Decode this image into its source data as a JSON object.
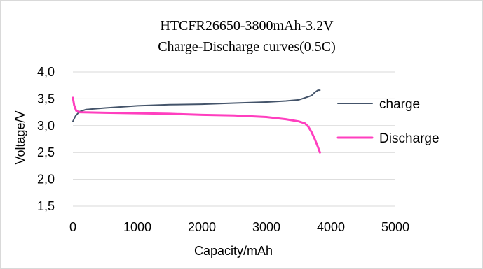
{
  "chart_data": {
    "type": "line",
    "title": "HTCFR26650-3800mAh-3.2V",
    "subtitle": "Charge-Discharge curves(0.5C)",
    "xlabel": "Capacity/mAh",
    "ylabel": "Voltage/V",
    "xlim": [
      0,
      5000
    ],
    "ylim": [
      1.5,
      4.0
    ],
    "x_ticks": [
      "0",
      "1000",
      "2000",
      "3000",
      "4000",
      "5000"
    ],
    "y_ticks": [
      "4,0",
      "3,5",
      "3,0",
      "2,5",
      "2,0",
      "1,5"
    ],
    "grid": "horizontal",
    "legend_position": "right",
    "series": [
      {
        "name": "charge",
        "color": "#44546a",
        "points": [
          [
            0,
            3.08
          ],
          [
            40,
            3.18
          ],
          [
            100,
            3.26
          ],
          [
            200,
            3.3
          ],
          [
            500,
            3.33
          ],
          [
            1000,
            3.37
          ],
          [
            1500,
            3.39
          ],
          [
            2000,
            3.4
          ],
          [
            2500,
            3.42
          ],
          [
            3000,
            3.44
          ],
          [
            3300,
            3.46
          ],
          [
            3500,
            3.48
          ],
          [
            3600,
            3.52
          ],
          [
            3700,
            3.56
          ],
          [
            3750,
            3.62
          ],
          [
            3800,
            3.66
          ],
          [
            3830,
            3.66
          ]
        ]
      },
      {
        "name": "Discharge",
        "color": "#ff3fbf",
        "points": [
          [
            0,
            3.52
          ],
          [
            20,
            3.38
          ],
          [
            50,
            3.28
          ],
          [
            100,
            3.25
          ],
          [
            500,
            3.24
          ],
          [
            1000,
            3.23
          ],
          [
            1500,
            3.22
          ],
          [
            2000,
            3.2
          ],
          [
            2500,
            3.19
          ],
          [
            3000,
            3.16
          ],
          [
            3300,
            3.12
          ],
          [
            3500,
            3.08
          ],
          [
            3600,
            3.04
          ],
          [
            3650,
            2.98
          ],
          [
            3700,
            2.88
          ],
          [
            3750,
            2.75
          ],
          [
            3800,
            2.6
          ],
          [
            3830,
            2.5
          ]
        ]
      }
    ]
  }
}
